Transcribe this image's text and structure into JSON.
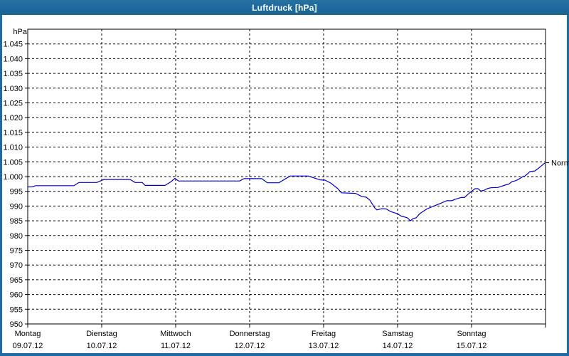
{
  "window": {
    "title": "Luftdruck [hPa]"
  },
  "colors": {
    "frame_blue": "#1e6ba3",
    "line_blue": "#0000c8",
    "grid_black": "#000000",
    "background": "#ffffff",
    "title_text": "#ffffff"
  },
  "chart": {
    "unit_label": "hPa",
    "normal_label": "Normal",
    "days": [
      {
        "name": "Montag",
        "date": "09.07.12"
      },
      {
        "name": "Dienstag",
        "date": "10.07.12"
      },
      {
        "name": "Mittwoch",
        "date": "11.07.12"
      },
      {
        "name": "Donnerstag",
        "date": "12.07.12"
      },
      {
        "name": "Freitag",
        "date": "13.07.12"
      },
      {
        "name": "Samstag",
        "date": "14.07.12"
      },
      {
        "name": "Sonntag",
        "date": "15.07.12"
      }
    ]
  },
  "chart_data": {
    "type": "line",
    "title": "Luftdruck [hPa]",
    "ylabel": "hPa",
    "ylim": [
      950,
      1050
    ],
    "y_tick_step": 5,
    "grid": "dashed",
    "x_unit": "days since Monday 09.07.12 00:00",
    "xlim": [
      0,
      7
    ],
    "series_name": "Luftdruck",
    "x": [
      0,
      0.058,
      0.106,
      0.625,
      0.692,
      0.933,
      1.029,
      1.385,
      1.452,
      1.548,
      1.587,
      1.856,
      1.933,
      1.99,
      2.038,
      2.865,
      2.923,
      3.163,
      3.24,
      3.394,
      3.548,
      3.788,
      3.952,
      4.019,
      4.096,
      4.192,
      4.24,
      4.433,
      4.51,
      4.577,
      4.625,
      4.692,
      4.721,
      4.788,
      4.846,
      4.894,
      4.933,
      5.0,
      5.048,
      5.106,
      5.135,
      5.173,
      5.212,
      5.25,
      5.298,
      5.394,
      5.49,
      5.587,
      5.663,
      5.731,
      5.779,
      5.856,
      5.904,
      5.952,
      6.0,
      6.048,
      6.087,
      6.125,
      6.163,
      6.212,
      6.26,
      6.356,
      6.404,
      6.452,
      6.5,
      6.548,
      6.596,
      6.644,
      6.692,
      6.721,
      6.76,
      6.788,
      6.856,
      6.904,
      6.933,
      6.962,
      6.99
    ],
    "values": [
      996.5,
      996.5,
      996.9,
      996.9,
      998.0,
      998.0,
      999.0,
      999.0,
      998.0,
      998.0,
      997.0,
      997.0,
      998.2,
      999.4,
      998.5,
      998.5,
      999.3,
      999.3,
      997.9,
      997.9,
      1000.2,
      1000.2,
      998.9,
      998.8,
      997.8,
      995.9,
      994.5,
      994.3,
      993.3,
      993.0,
      992.0,
      989.3,
      988.7,
      989.1,
      989.0,
      988.3,
      987.9,
      987.4,
      986.6,
      986.2,
      986.0,
      985.0,
      985.8,
      986.0,
      987.4,
      989.0,
      990.0,
      991.0,
      991.8,
      991.8,
      992.3,
      992.9,
      992.9,
      994.0,
      995.0,
      995.9,
      995.9,
      995.1,
      995.3,
      995.9,
      996.2,
      996.3,
      996.7,
      997.1,
      997.4,
      998.3,
      998.6,
      999.2,
      1000.0,
      1000.2,
      1001.0,
      1001.7,
      1001.9,
      1002.8,
      1003.4,
      1004.0,
      1004.6
    ],
    "annotations": [
      {
        "label": "Normal",
        "y": 1004.7,
        "position": "right-axis"
      }
    ]
  }
}
